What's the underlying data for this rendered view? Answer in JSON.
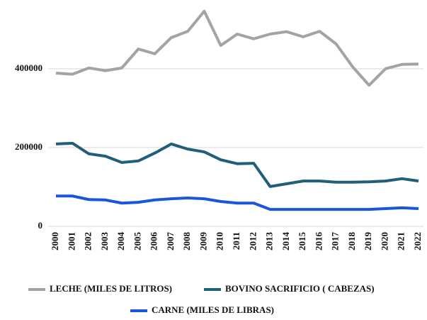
{
  "chart_data": {
    "type": "line",
    "categories": [
      "2000",
      "2001",
      "2002",
      "2003",
      "2004",
      "2005",
      "2006",
      "2007",
      "2008",
      "2009",
      "2010",
      "2011",
      "2012",
      "2013",
      "2014",
      "2015",
      "2016",
      "2017",
      "2018",
      "2019",
      "2020",
      "2021",
      "2022"
    ],
    "series": [
      {
        "name": "LECHE (MILES DE LITROS)",
        "color": "#a3a3a3",
        "values": [
          389000,
          386000,
          402000,
          395000,
          402000,
          450000,
          438000,
          479000,
          495000,
          546000,
          459000,
          488000,
          476000,
          488000,
          494000,
          481000,
          495000,
          463000,
          405000,
          358000,
          400000,
          411000,
          412000
        ]
      },
      {
        "name": "BOVINO SACRIFICIO  ( CABEZAS)",
        "color": "#1f5f7a",
        "values": [
          209000,
          211000,
          184000,
          178000,
          162000,
          166000,
          186000,
          209000,
          196000,
          189000,
          169000,
          159000,
          160000,
          101000,
          108000,
          115000,
          115000,
          112000,
          112000,
          113000,
          115000,
          121000,
          115000
        ]
      },
      {
        "name": "CARNE (MILES DE LIBRAS)",
        "color": "#1a56db",
        "values": [
          77000,
          77000,
          68000,
          67000,
          59000,
          61000,
          67000,
          70000,
          72000,
          70000,
          63000,
          59000,
          59000,
          43000,
          43000,
          43000,
          43000,
          43000,
          43000,
          43000,
          45000,
          47000,
          45000
        ]
      }
    ],
    "ylim": [
      0,
      560000
    ],
    "yticks": [
      0,
      200000,
      400000
    ],
    "grid": true,
    "legend": "bottom"
  }
}
